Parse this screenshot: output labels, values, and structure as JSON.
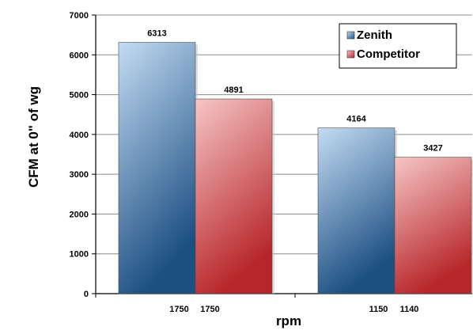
{
  "chart_data": {
    "type": "bar",
    "title": "",
    "xlabel": "rpm",
    "ylabel": "CFM at 0\" of wg",
    "ylim": [
      0,
      7000
    ],
    "yticks": [
      0,
      1000,
      2000,
      3000,
      4000,
      5000,
      6000,
      7000
    ],
    "grid": true,
    "legend_position": "top-right",
    "groups": [
      {
        "bars": [
          {
            "series": "Zenith",
            "value": 6313,
            "value_label": "6313",
            "x_label": "1750"
          },
          {
            "series": "Competitor",
            "value": 4891,
            "value_label": "4891",
            "x_label": "1750"
          }
        ]
      },
      {
        "bars": [
          {
            "series": "Zenith",
            "value": 4164,
            "value_label": "4164",
            "x_label": "1150"
          },
          {
            "series": "Competitor",
            "value": 3427,
            "value_label": "3427",
            "x_label": "1140"
          }
        ]
      }
    ],
    "series": [
      {
        "name": "Zenith",
        "color_light": "#c4dcf3",
        "color_dark": "#1c4f82"
      },
      {
        "name": "Competitor",
        "color_light": "#f6c6c6",
        "color_dark": "#b7262a"
      }
    ]
  }
}
